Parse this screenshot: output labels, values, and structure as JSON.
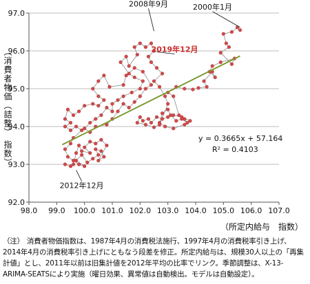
{
  "chart_data": {
    "type": "scatter",
    "ylabel": "（消費者物価（詰整） 指数）",
    "xlabel": "（所定内給与　指数）",
    "xlim": [
      98.0,
      107.0
    ],
    "ylim": [
      92.0,
      97.0
    ],
    "xticks": [
      "98.0",
      "99.0",
      "100.0",
      "101.0",
      "102.0",
      "103.0",
      "104.0",
      "105.0",
      "106.0",
      "107.0"
    ],
    "yticks": [
      "92.0",
      "93.0",
      "94.0",
      "95.0",
      "96.0",
      "97.0"
    ],
    "grid": "y-major",
    "marker_color": "#cf4a4a",
    "line_color": "#8a8a8a",
    "trend_color": "#7c9a2e",
    "trendline": {
      "slope": 0.3665,
      "intercept": 57.164,
      "x_range": [
        99.2,
        105.6
      ]
    },
    "equation": "y = 0.3665x + 57.164",
    "r2": "R² = 0.4103",
    "annotations": [
      {
        "text": "2008年9月",
        "x": 102.5,
        "y": 96.45,
        "color": "#111111"
      },
      {
        "text": "2000年1月",
        "x": 105.6,
        "y": 96.55,
        "color": "#111111"
      },
      {
        "text": "2019年12月",
        "x": 102.6,
        "y": 95.9,
        "color": "#cc2b2b"
      },
      {
        "text": "2012年12月",
        "x": 99.7,
        "y": 92.92,
        "color": "#111111"
      }
    ],
    "series": [
      {
        "points": [
          [
            105.6,
            96.55
          ],
          [
            105.5,
            96.62
          ],
          [
            105.3,
            96.5
          ],
          [
            105.0,
            96.45
          ],
          [
            105.1,
            96.2
          ],
          [
            105.2,
            96.1
          ],
          [
            104.9,
            95.95
          ],
          [
            105.3,
            95.65
          ],
          [
            105.4,
            95.8
          ],
          [
            104.9,
            95.7
          ],
          [
            104.6,
            95.6
          ],
          [
            104.5,
            95.45
          ],
          [
            104.7,
            95.3
          ],
          [
            104.6,
            95.45
          ],
          [
            104.3,
            95.2
          ],
          [
            104.4,
            95.05
          ],
          [
            104.1,
            95.02
          ],
          [
            103.9,
            94.98
          ],
          [
            103.6,
            95.0
          ],
          [
            103.3,
            95.05
          ],
          [
            103.0,
            94.9
          ],
          [
            103.2,
            94.8
          ],
          [
            103.4,
            94.3
          ],
          [
            103.6,
            94.2
          ],
          [
            103.7,
            94.1
          ],
          [
            103.5,
            94.2
          ],
          [
            103.3,
            94.15
          ],
          [
            103.1,
            94.3
          ],
          [
            103.0,
            94.45
          ],
          [
            102.8,
            94.35
          ],
          [
            102.7,
            94.1
          ],
          [
            102.9,
            94.0
          ],
          [
            103.2,
            93.95
          ],
          [
            103.6,
            94.05
          ],
          [
            103.8,
            94.15
          ],
          [
            103.5,
            94.25
          ],
          [
            103.2,
            94.3
          ],
          [
            103.0,
            94.25
          ],
          [
            102.8,
            94.2
          ],
          [
            102.6,
            94.25
          ],
          [
            102.4,
            94.1
          ],
          [
            102.3,
            94.2
          ],
          [
            102.1,
            94.15
          ],
          [
            102.0,
            94.25
          ],
          [
            101.9,
            94.1
          ],
          [
            102.2,
            94.05
          ],
          [
            102.5,
            93.98
          ],
          [
            102.7,
            94.05
          ],
          [
            103.0,
            94.6
          ],
          [
            102.9,
            94.8
          ],
          [
            102.7,
            95.05
          ],
          [
            102.5,
            95.2
          ],
          [
            102.8,
            95.4
          ],
          [
            102.6,
            95.55
          ],
          [
            102.4,
            95.7
          ],
          [
            102.3,
            95.85
          ],
          [
            102.5,
            96.0
          ],
          [
            102.4,
            96.2
          ],
          [
            102.2,
            96.1
          ],
          [
            102.0,
            96.2
          ],
          [
            101.8,
            96.1
          ],
          [
            101.9,
            95.9
          ],
          [
            101.6,
            95.6
          ],
          [
            101.5,
            95.85
          ],
          [
            101.3,
            95.7
          ],
          [
            101.6,
            95.4
          ],
          [
            101.8,
            95.3
          ],
          [
            102.1,
            95.2
          ],
          [
            102.0,
            95.0
          ],
          [
            101.7,
            94.9
          ],
          [
            101.4,
            94.8
          ],
          [
            101.2,
            94.7
          ],
          [
            101.0,
            94.6
          ],
          [
            101.0,
            94.4
          ],
          [
            100.8,
            94.5
          ],
          [
            100.6,
            94.3
          ],
          [
            100.4,
            94.2
          ],
          [
            100.2,
            94.1
          ],
          [
            100.0,
            93.95
          ],
          [
            100.2,
            93.85
          ],
          [
            100.4,
            94.0
          ],
          [
            100.8,
            94.05
          ],
          [
            101.0,
            94.2
          ],
          [
            101.2,
            94.4
          ],
          [
            101.4,
            94.6
          ],
          [
            101.6,
            94.5
          ],
          [
            101.8,
            94.65
          ],
          [
            102.0,
            94.8
          ],
          [
            102.2,
            95.0
          ],
          [
            102.4,
            95.1
          ],
          [
            102.1,
            95.45
          ],
          [
            101.8,
            95.55
          ],
          [
            101.5,
            95.35
          ],
          [
            101.4,
            95.1
          ],
          [
            100.9,
            95.05
          ],
          [
            100.7,
            95.35
          ],
          [
            100.5,
            95.2
          ],
          [
            100.3,
            95.0
          ],
          [
            100.5,
            94.8
          ],
          [
            100.7,
            94.7
          ],
          [
            100.5,
            94.55
          ],
          [
            100.3,
            94.6
          ],
          [
            100.0,
            94.55
          ],
          [
            99.8,
            94.4
          ],
          [
            99.6,
            94.3
          ],
          [
            99.4,
            94.45
          ],
          [
            99.3,
            94.2
          ],
          [
            99.5,
            94.1
          ],
          [
            99.3,
            94.0
          ],
          [
            99.5,
            93.9
          ],
          [
            99.7,
            94.0
          ],
          [
            99.9,
            93.9
          ],
          [
            99.6,
            93.7
          ],
          [
            99.5,
            93.55
          ],
          [
            99.3,
            93.4
          ],
          [
            99.4,
            93.2
          ],
          [
            99.6,
            93.1
          ],
          [
            99.8,
            93.0
          ],
          [
            100.0,
            92.95
          ],
          [
            99.7,
            93.1
          ],
          [
            99.9,
            93.25
          ],
          [
            100.1,
            93.05
          ],
          [
            100.3,
            93.15
          ],
          [
            100.5,
            93.25
          ],
          [
            100.4,
            93.4
          ],
          [
            100.6,
            93.35
          ],
          [
            100.7,
            93.2
          ],
          [
            100.5,
            93.1
          ],
          [
            100.8,
            93.5
          ],
          [
            100.6,
            93.65
          ],
          [
            100.4,
            93.55
          ],
          [
            100.2,
            93.6
          ],
          [
            100.0,
            93.45
          ],
          [
            100.2,
            93.3
          ],
          [
            99.9,
            93.35
          ],
          [
            99.8,
            93.5
          ],
          [
            99.7,
            93.3
          ],
          [
            99.6,
            93.0
          ],
          [
            99.5,
            92.95
          ],
          [
            99.3,
            93.0
          ]
        ]
      }
    ]
  },
  "note": {
    "prefix": "（注）",
    "text": "消費者物価指数は、1987年4月の消費税法施行、1997年4月の消費税率引き上げ、2014年4月の消費税率引き上げにともなう段差を修正。所定内給与は、規模30人以上の「再集計値」とし、2011年以前は旧集計値を2012年平均の比率でリンク。季節調整は、X-13-ARIMA-SEATSにより実施（曜日効果、異常値は自動検出。モデルは自動設定）。"
  }
}
